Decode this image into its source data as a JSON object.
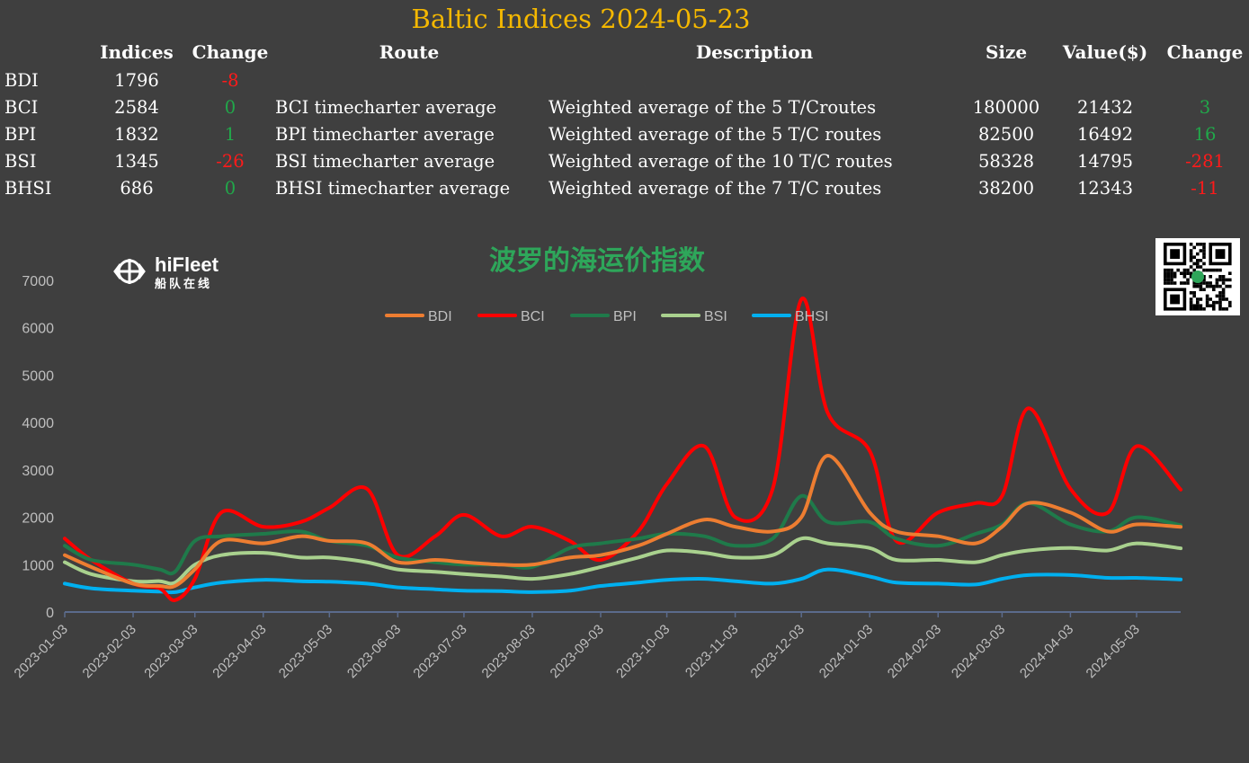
{
  "header": {
    "title": "Baltic Indices 2024-05-23"
  },
  "table": {
    "columns": [
      "Indices",
      "Change",
      "Route",
      "Description",
      "Size",
      "Value($)",
      "Change"
    ],
    "rows": [
      {
        "name": "BDI",
        "index": "1796",
        "change": "-8",
        "change_sign": "neg",
        "route": "",
        "description": "",
        "size": "",
        "value": "",
        "route_change": "",
        "route_change_sign": ""
      },
      {
        "name": "BCI",
        "index": "2584",
        "change": "0",
        "change_sign": "pos",
        "route": "BCI timecharter average",
        "description": "Weighted average of the 5 T/Croutes",
        "size": "180000",
        "value": "21432",
        "route_change": "3",
        "route_change_sign": "pos"
      },
      {
        "name": "BPI",
        "index": "1832",
        "change": "1",
        "change_sign": "pos",
        "route": "BPI timecharter average",
        "description": "Weighted average of the 5 T/C routes",
        "size": "82500",
        "value": "16492",
        "route_change": "16",
        "route_change_sign": "pos"
      },
      {
        "name": "BSI",
        "index": "1345",
        "change": "-26",
        "change_sign": "neg",
        "route": "BSI timecharter average",
        "description": "Weighted average of the 10 T/C routes",
        "size": "58328",
        "value": "14795",
        "route_change": "-281",
        "route_change_sign": "neg"
      },
      {
        "name": "BHSI",
        "index": "686",
        "change": "0",
        "change_sign": "pos",
        "route": "BHSI timecharter average",
        "description": "Weighted average of the 7 T/C routes",
        "size": "38200",
        "value": "12343",
        "route_change": "-11",
        "route_change_sign": "neg"
      }
    ]
  },
  "brand": {
    "name": "hiFleet",
    "subtitle": "船队在线"
  },
  "chart_data": {
    "type": "line",
    "title": "波罗的海运价指数",
    "ylim": [
      0,
      7000
    ],
    "yticks": [
      0,
      1000,
      2000,
      3000,
      4000,
      5000,
      6000,
      7000
    ],
    "x_ticks": [
      "2023-01-03",
      "2023-02-03",
      "2023-03-03",
      "2023-04-03",
      "2023-05-03",
      "2023-06-03",
      "2023-07-03",
      "2023-08-03",
      "2023-09-03",
      "2023-10-03",
      "2023-11-03",
      "2023-12-03",
      "2024-01-03",
      "2024-02-03",
      "2024-03-03",
      "2024-04-03",
      "2024-05-03"
    ],
    "legend_position": "top-center",
    "x_dates": [
      "2023-01-03",
      "2023-01-15",
      "2023-02-03",
      "2023-02-15",
      "2023-02-22",
      "2023-03-03",
      "2023-03-15",
      "2023-04-03",
      "2023-04-20",
      "2023-05-03",
      "2023-05-20",
      "2023-06-03",
      "2023-06-20",
      "2023-07-03",
      "2023-07-20",
      "2023-08-03",
      "2023-08-20",
      "2023-09-03",
      "2023-09-20",
      "2023-10-03",
      "2023-10-20",
      "2023-11-03",
      "2023-11-20",
      "2023-12-03",
      "2023-12-15",
      "2024-01-03",
      "2024-01-15",
      "2024-02-03",
      "2024-02-20",
      "2024-03-03",
      "2024-03-15",
      "2024-04-03",
      "2024-04-20",
      "2024-05-03",
      "2024-05-23"
    ],
    "series": [
      {
        "name": "BDI",
        "color": "#ed7d31",
        "values": [
          1200,
          950,
          600,
          550,
          550,
          900,
          1500,
          1450,
          1600,
          1500,
          1450,
          1050,
          1100,
          1050,
          1000,
          1000,
          1150,
          1200,
          1400,
          1650,
          1950,
          1800,
          1700,
          2000,
          3300,
          2100,
          1700,
          1600,
          1450,
          1800,
          2300,
          2100,
          1700,
          1850,
          1796
        ]
      },
      {
        "name": "BCI",
        "color": "#ff0000",
        "values": [
          1550,
          1100,
          600,
          500,
          250,
          700,
          2100,
          1800,
          1900,
          2200,
          2600,
          1200,
          1600,
          2050,
          1600,
          1800,
          1500,
          1100,
          1700,
          2700,
          3500,
          2000,
          2600,
          6600,
          4200,
          3400,
          1500,
          2100,
          2300,
          2450,
          4300,
          2600,
          2100,
          3500,
          2584
        ]
      },
      {
        "name": "BPI",
        "color": "#1f7a4a",
        "values": [
          1400,
          1100,
          1000,
          900,
          850,
          1500,
          1600,
          1650,
          1700,
          1500,
          1400,
          1150,
          1050,
          1000,
          1000,
          950,
          1350,
          1450,
          1550,
          1650,
          1600,
          1400,
          1550,
          2450,
          1900,
          1900,
          1550,
          1400,
          1650,
          1850,
          2300,
          1850,
          1700,
          2000,
          1832
        ]
      },
      {
        "name": "BSI",
        "color": "#a9d18e",
        "values": [
          1050,
          800,
          650,
          650,
          620,
          1000,
          1200,
          1250,
          1150,
          1150,
          1050,
          900,
          850,
          800,
          750,
          700,
          800,
          950,
          1150,
          1300,
          1250,
          1150,
          1200,
          1550,
          1450,
          1350,
          1100,
          1100,
          1050,
          1200,
          1300,
          1350,
          1300,
          1450,
          1345
        ]
      },
      {
        "name": "BHSI",
        "color": "#00b0f0",
        "values": [
          600,
          500,
          450,
          430,
          420,
          520,
          620,
          680,
          650,
          640,
          600,
          520,
          480,
          450,
          440,
          420,
          450,
          550,
          620,
          680,
          700,
          650,
          600,
          700,
          900,
          750,
          620,
          600,
          580,
          700,
          780,
          780,
          720,
          720,
          686
        ]
      }
    ]
  }
}
